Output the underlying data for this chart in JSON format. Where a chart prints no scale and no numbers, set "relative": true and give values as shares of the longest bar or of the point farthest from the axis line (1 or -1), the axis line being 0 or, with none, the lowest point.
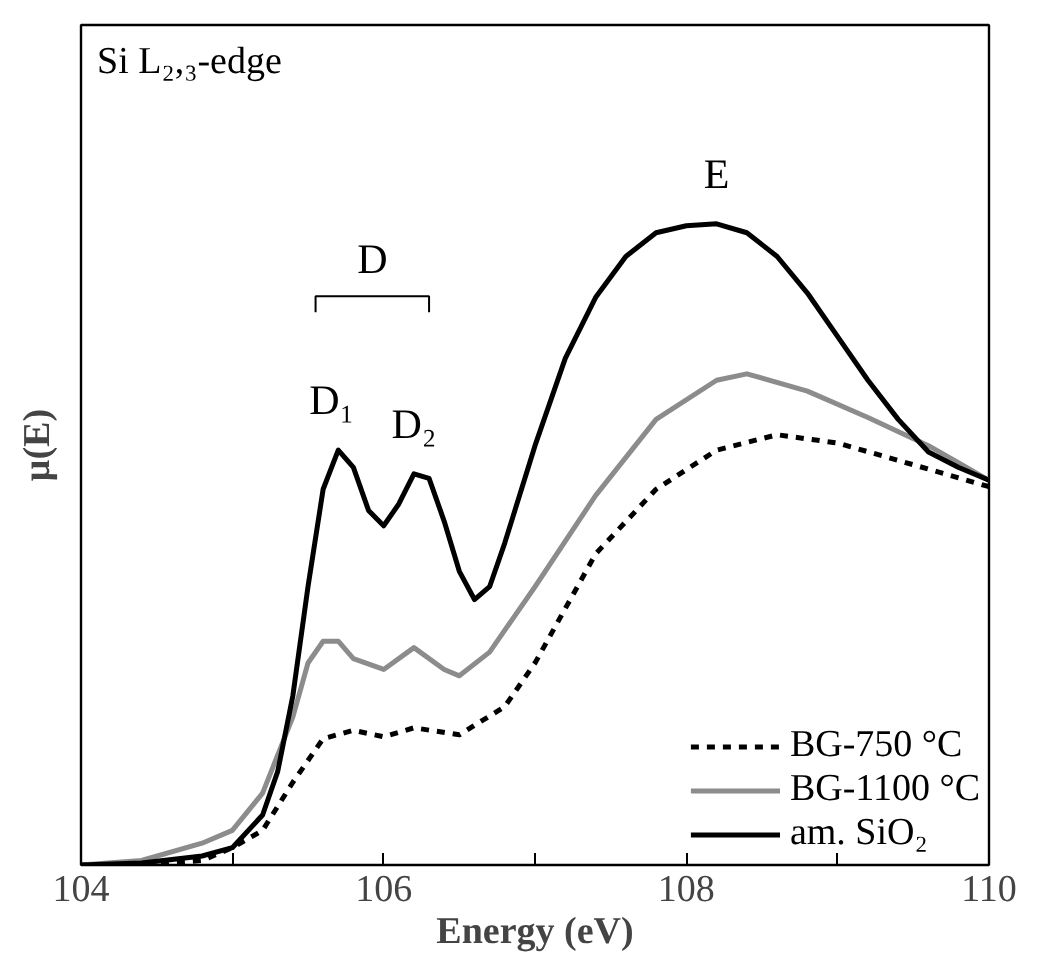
{
  "chart_data": {
    "type": "line",
    "relative": true,
    "xlabel": "Energy (eV)",
    "ylabel": "μ(E)",
    "xlim": [
      104,
      110
    ],
    "xticks": [
      104,
      {
        "value": 105,
        "label": null
      },
      106,
      {
        "value": 107,
        "label": null
      },
      108,
      {
        "value": 109,
        "label": null
      },
      110
    ],
    "legend": "bottom right",
    "grid": false,
    "annotations": [
      "Si L₂,₃-edge",
      "D",
      {
        "text": "D₁",
        "x": 105.7,
        "y": 0.647
      },
      {
        "text": "D₂",
        "x": 106.2,
        "y": 0.61
      },
      {
        "text": "E",
        "x": 108.2,
        "y": 1.0
      }
    ],
    "series": [
      {
        "name": "BG-750 °C",
        "color": "#000000",
        "line_style": "dashed",
        "x": [
          104,
          104.4,
          104.8,
          105,
          105.2,
          105.4,
          105.6,
          105.8,
          106,
          106.2,
          106.5,
          106.8,
          107,
          107.4,
          107.8,
          108.2,
          108.6,
          109,
          109.4,
          110
        ],
        "values": [
          0,
          0,
          0.007,
          0.027,
          0.054,
          0.129,
          0.197,
          0.21,
          0.2,
          0.214,
          0.203,
          0.247,
          0.315,
          0.485,
          0.586,
          0.647,
          0.671,
          0.658,
          0.631,
          0.59
        ]
      },
      {
        "name": "BG-1100 °C",
        "color": "#8c8c8c",
        "line_style": "solid",
        "x": [
          104,
          104.4,
          104.8,
          105,
          105.2,
          105.4,
          105.5,
          105.6,
          105.7,
          105.8,
          106,
          106.2,
          106.4,
          106.5,
          106.7,
          107,
          107.4,
          107.8,
          108.2,
          108.4,
          108.8,
          109.2,
          109.6,
          109.8,
          110
        ],
        "values": [
          0,
          0.007,
          0.034,
          0.054,
          0.112,
          0.231,
          0.315,
          0.349,
          0.349,
          0.322,
          0.305,
          0.339,
          0.305,
          0.295,
          0.332,
          0.434,
          0.576,
          0.695,
          0.756,
          0.766,
          0.739,
          0.698,
          0.654,
          0.627,
          0.6
        ]
      },
      {
        "name": "am. SiO₂",
        "color": "#000000",
        "line_style": "solid",
        "x": [
          104,
          104.4,
          104.8,
          105,
          105.2,
          105.3,
          105.4,
          105.5,
          105.6,
          105.7,
          105.8,
          105.9,
          106,
          106.1,
          106.2,
          106.3,
          106.4,
          106.5,
          106.6,
          106.7,
          106.8,
          107,
          107.2,
          107.4,
          107.6,
          107.8,
          108,
          108.2,
          108.4,
          108.6,
          108.8,
          109,
          109.2,
          109.4,
          109.6,
          109.8,
          110
        ],
        "values": [
          0,
          0.003,
          0.014,
          0.027,
          0.078,
          0.146,
          0.264,
          0.434,
          0.586,
          0.647,
          0.62,
          0.553,
          0.529,
          0.563,
          0.61,
          0.603,
          0.536,
          0.458,
          0.414,
          0.434,
          0.502,
          0.654,
          0.79,
          0.885,
          0.949,
          0.986,
          0.997,
          1.0,
          0.986,
          0.949,
          0.892,
          0.824,
          0.756,
          0.695,
          0.644,
          0.62,
          0.6
        ]
      }
    ]
  }
}
